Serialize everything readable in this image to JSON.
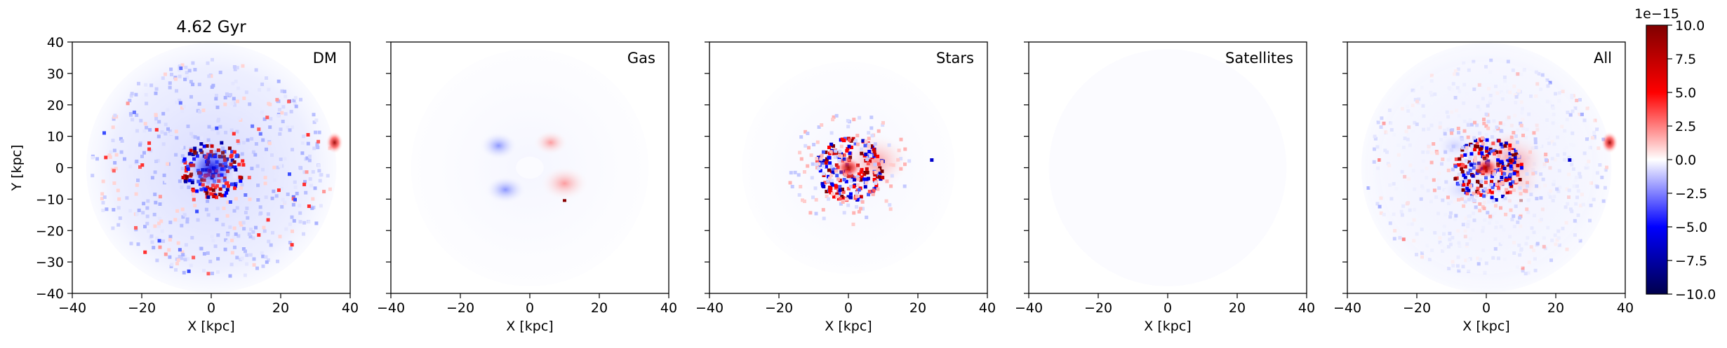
{
  "chart_data": {
    "type": "heatmap",
    "title": "4.62 Gyr",
    "xlabel": "X [kpc]",
    "ylabel": "Y [kpc]",
    "xlim": [
      -40,
      40
    ],
    "ylim": [
      -40,
      40
    ],
    "xticks": [
      -40,
      -20,
      0,
      20,
      40
    ],
    "yticks": [
      -40,
      -30,
      -20,
      -10,
      0,
      10,
      20,
      30,
      40
    ],
    "panels": [
      {
        "label": "DM"
      },
      {
        "label": "Gas"
      },
      {
        "label": "Stars"
      },
      {
        "label": "Satellites"
      },
      {
        "label": "All"
      }
    ],
    "colorbar": {
      "colormap": "seismic",
      "min": -10.0,
      "max": 10.0,
      "ticks": [
        "10.0",
        "7.5",
        "5.0",
        "2.5",
        "0.0",
        "−2.5",
        "−5.0",
        "−7.5",
        "−10.0"
      ],
      "tick_values": [
        10,
        7.5,
        5,
        2.5,
        0,
        -2.5,
        -5,
        -7.5,
        -10
      ],
      "scale_label": "1e−15"
    },
    "colors": {
      "neg_end": "#00004c",
      "blue": "#0000ff",
      "zero": "#ffffff",
      "red": "#ff0000",
      "pos_end": "#800000"
    }
  }
}
